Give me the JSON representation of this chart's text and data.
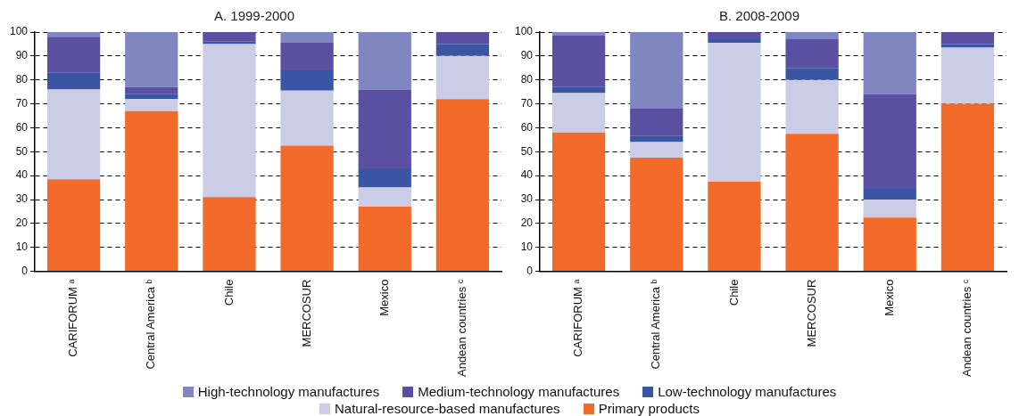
{
  "chart_data": [
    {
      "type": "bar",
      "title": "A. 1999-2000",
      "categories": [
        "CARIFORUM ᵃ",
        "Central America ᵇ",
        "Chile",
        "MERCOSUR",
        "Mexico",
        "Andean countries ᶜ"
      ],
      "stacked": true,
      "ylim": [
        0,
        100
      ],
      "yticks": [
        0,
        10,
        20,
        30,
        40,
        50,
        60,
        70,
        80,
        90,
        100
      ],
      "grid": "y",
      "legend": "bottom",
      "series": [
        {
          "name": "Primary products",
          "color": "#f26b2a",
          "values": [
            38.5,
            67,
            31,
            52.5,
            27,
            72
          ]
        },
        {
          "name": "Natural-resource-based manufactures",
          "color": "#cbcde6",
          "values": [
            37.5,
            5,
            64,
            23,
            8,
            18
          ]
        },
        {
          "name": "Low-technology manufactures",
          "color": "#3a55a4",
          "values": [
            7,
            2,
            1,
            8.5,
            8,
            5
          ]
        },
        {
          "name": "Medium-technology manufactures",
          "color": "#5a4fa0",
          "values": [
            15,
            3,
            4,
            11.5,
            33,
            5
          ]
        },
        {
          "name": "High-technology manufactures",
          "color": "#7f86c0",
          "values": [
            2,
            23,
            0,
            4.5,
            24,
            0
          ]
        }
      ]
    },
    {
      "type": "bar",
      "title": "B. 2008-2009",
      "categories": [
        "CARIFORUM ᵃ",
        "Central America ᵇ",
        "Chile",
        "MERCOSUR",
        "Mexico",
        "Andean countries ᶜ"
      ],
      "stacked": true,
      "ylim": [
        0,
        100
      ],
      "yticks": [
        0,
        10,
        20,
        30,
        40,
        50,
        60,
        70,
        80,
        90,
        100
      ],
      "grid": "y",
      "series": [
        {
          "color": "#f26b2a",
          "values": [
            58,
            47.5,
            37.5,
            57.5,
            22.5,
            70
          ]
        },
        {
          "color": "#cbcde6",
          "values": [
            16.5,
            6.5,
            58,
            22.5,
            7.5,
            23.5
          ]
        },
        {
          "color": "#3a55a4",
          "values": [
            2.5,
            2.5,
            1.5,
            5,
            4.5,
            1.5
          ]
        },
        {
          "color": "#5a4fa0",
          "values": [
            21.5,
            11.5,
            3,
            12,
            39.5,
            5
          ]
        },
        {
          "color": "#7f86c0",
          "values": [
            1.5,
            32,
            0,
            3,
            26,
            0
          ]
        }
      ]
    }
  ]
}
